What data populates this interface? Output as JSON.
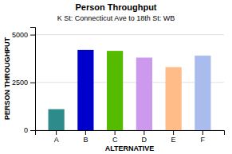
{
  "chart_data": {
    "type": "bar",
    "title": "Person Throughput",
    "subtitle": "K St: Connecticut Ave to 18th St: WB",
    "xlabel": "ALTERNATIVE",
    "ylabel": "PERSON THROUGHPUT",
    "categories": [
      "A",
      "B",
      "C",
      "D",
      "E",
      "F"
    ],
    "values": [
      1100,
      4200,
      4150,
      3800,
      3300,
      3900
    ],
    "colors": [
      "#2e8b8b",
      "#0000cc",
      "#55bb00",
      "#cc99ee",
      "#ffbb88",
      "#aabbee"
    ],
    "ylim": [
      0,
      5400
    ],
    "yticks": [
      0,
      2500,
      5000
    ],
    "grid": true
  }
}
